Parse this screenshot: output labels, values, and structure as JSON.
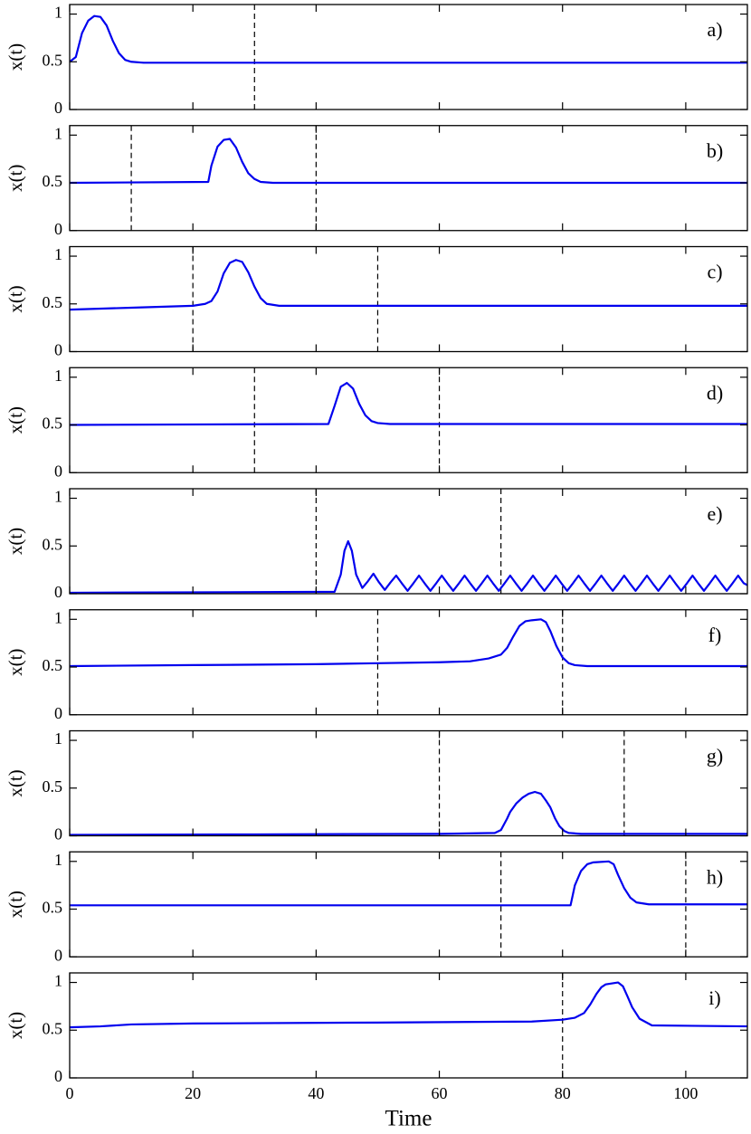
{
  "chart_data": [
    {
      "type": "line",
      "label": "a)",
      "ylabel": "x(t)",
      "color": "#0000ee",
      "xlim": [
        0,
        110
      ],
      "ylim": [
        0,
        1.1
      ],
      "xticks": [
        0,
        20,
        40,
        60,
        80,
        100
      ],
      "yticks": [
        0,
        0.5,
        1
      ],
      "vlines": [
        30
      ],
      "x": [
        0,
        1,
        2,
        3,
        4,
        5,
        6,
        7,
        8,
        9,
        10,
        12,
        15,
        110
      ],
      "values": [
        0.5,
        0.55,
        0.8,
        0.93,
        0.98,
        0.97,
        0.88,
        0.72,
        0.59,
        0.52,
        0.5,
        0.49,
        0.49,
        0.49
      ]
    },
    {
      "type": "line",
      "label": "b)",
      "ylabel": "x(t)",
      "color": "#0000ee",
      "xlim": [
        0,
        110
      ],
      "ylim": [
        0,
        1.1
      ],
      "xticks": [
        0,
        20,
        40,
        60,
        80,
        100
      ],
      "yticks": [
        0,
        0.5,
        1
      ],
      "vlines": [
        10,
        40
      ],
      "x": [
        0,
        22.5,
        23,
        24,
        25,
        26,
        27,
        28,
        29,
        30,
        31,
        33,
        110
      ],
      "values": [
        0.5,
        0.51,
        0.68,
        0.88,
        0.95,
        0.96,
        0.87,
        0.72,
        0.6,
        0.54,
        0.51,
        0.5,
        0.5
      ]
    },
    {
      "type": "line",
      "label": "c)",
      "ylabel": "x(t)",
      "color": "#0000ee",
      "xlim": [
        0,
        110
      ],
      "ylim": [
        0,
        1.1
      ],
      "xticks": [
        0,
        20,
        40,
        60,
        80,
        100
      ],
      "yticks": [
        0,
        0.5,
        1
      ],
      "vlines": [
        20,
        50
      ],
      "x": [
        0,
        10,
        20,
        22,
        23,
        24,
        25,
        26,
        27,
        28,
        29,
        30,
        31,
        32,
        34,
        110
      ],
      "values": [
        0.44,
        0.46,
        0.48,
        0.5,
        0.53,
        0.63,
        0.82,
        0.93,
        0.96,
        0.94,
        0.83,
        0.68,
        0.56,
        0.5,
        0.48,
        0.48
      ]
    },
    {
      "type": "line",
      "label": "d)",
      "ylabel": "x(t)",
      "color": "#0000ee",
      "xlim": [
        0,
        110
      ],
      "ylim": [
        0,
        1.1
      ],
      "xticks": [
        0,
        20,
        40,
        60,
        80,
        100
      ],
      "yticks": [
        0,
        0.5,
        1
      ],
      "vlines": [
        30,
        60
      ],
      "x": [
        0,
        42,
        43,
        44,
        45,
        46,
        47,
        48,
        49,
        50,
        52,
        110
      ],
      "values": [
        0.5,
        0.51,
        0.7,
        0.9,
        0.94,
        0.88,
        0.72,
        0.6,
        0.54,
        0.52,
        0.51,
        0.51
      ]
    },
    {
      "type": "line",
      "label": "e)",
      "ylabel": "x(t)",
      "color": "#0000ee",
      "xlim": [
        0,
        110
      ],
      "ylim": [
        0,
        1.1
      ],
      "xticks": [
        0,
        20,
        40,
        60,
        80,
        100
      ],
      "yticks": [
        0,
        0.5,
        1
      ],
      "vlines": [
        40,
        70
      ],
      "x": [
        0,
        43,
        44,
        44.6,
        45.2,
        45.8,
        46.5,
        47.5,
        48.4,
        49.3,
        50.2,
        51.15,
        52.1,
        53.0,
        53.9,
        54.85,
        55.8,
        56.7,
        57.6,
        58.55,
        59.5,
        60.4,
        61.3,
        62.25,
        63.2,
        64.1,
        65.0,
        65.95,
        66.9,
        67.8,
        68.7,
        69.65,
        70.6,
        71.5,
        72.4,
        73.35,
        74.3,
        75.2,
        76.1,
        77.05,
        78.0,
        78.9,
        79.8,
        80.75,
        81.7,
        82.6,
        83.5,
        84.45,
        85.4,
        86.3,
        87.2,
        88.15,
        89.1,
        90.0,
        90.9,
        91.85,
        92.8,
        93.7,
        94.6,
        95.55,
        96.5,
        97.4,
        98.3,
        99.25,
        100.2,
        101.1,
        102.0,
        102.95,
        103.9,
        104.8,
        105.7,
        106.65,
        107.6,
        108.5,
        109.4,
        110
      ],
      "values": [
        0.01,
        0.02,
        0.2,
        0.45,
        0.55,
        0.45,
        0.2,
        0.06,
        0.13,
        0.21,
        0.12,
        0.04,
        0.12,
        0.19,
        0.11,
        0.03,
        0.11,
        0.19,
        0.11,
        0.03,
        0.11,
        0.19,
        0.11,
        0.03,
        0.11,
        0.19,
        0.11,
        0.03,
        0.11,
        0.19,
        0.11,
        0.03,
        0.11,
        0.19,
        0.11,
        0.03,
        0.11,
        0.19,
        0.11,
        0.03,
        0.11,
        0.19,
        0.11,
        0.03,
        0.11,
        0.19,
        0.11,
        0.03,
        0.11,
        0.19,
        0.11,
        0.03,
        0.11,
        0.19,
        0.11,
        0.03,
        0.11,
        0.19,
        0.11,
        0.03,
        0.11,
        0.19,
        0.11,
        0.03,
        0.11,
        0.19,
        0.11,
        0.03,
        0.11,
        0.19,
        0.11,
        0.03,
        0.11,
        0.19,
        0.11,
        0.09
      ]
    },
    {
      "type": "line",
      "label": "f)",
      "ylabel": "x(t)",
      "color": "#0000ee",
      "xlim": [
        0,
        110
      ],
      "ylim": [
        0,
        1.1
      ],
      "xticks": [
        0,
        20,
        40,
        60,
        80,
        100
      ],
      "yticks": [
        0,
        0.5,
        1
      ],
      "vlines": [
        50,
        80
      ],
      "x": [
        0,
        20,
        40,
        50,
        60,
        65,
        68,
        70,
        71,
        72,
        73,
        74,
        75,
        76.5,
        77.3,
        78,
        79,
        80,
        81,
        82,
        84,
        110
      ],
      "values": [
        0.51,
        0.52,
        0.53,
        0.54,
        0.55,
        0.56,
        0.59,
        0.63,
        0.7,
        0.82,
        0.93,
        0.98,
        0.99,
        1.0,
        0.97,
        0.88,
        0.72,
        0.6,
        0.54,
        0.52,
        0.51,
        0.51
      ]
    },
    {
      "type": "line",
      "label": "g)",
      "ylabel": "x(t)",
      "color": "#0000ee",
      "xlim": [
        0,
        110
      ],
      "ylim": [
        0,
        1.1
      ],
      "xticks": [
        0,
        20,
        40,
        60,
        80,
        100
      ],
      "yticks": [
        0,
        0.5,
        1
      ],
      "vlines": [
        60,
        90
      ],
      "x": [
        0,
        30,
        60,
        69,
        70,
        71,
        71.5,
        72.5,
        73.5,
        74.5,
        75.5,
        76.5,
        77.3,
        78,
        78.8,
        79.5,
        80.3,
        81,
        83,
        110
      ],
      "values": [
        0.01,
        0.015,
        0.02,
        0.03,
        0.06,
        0.18,
        0.25,
        0.34,
        0.4,
        0.44,
        0.46,
        0.44,
        0.37,
        0.3,
        0.18,
        0.1,
        0.05,
        0.03,
        0.02,
        0.02
      ]
    },
    {
      "type": "line",
      "label": "h)",
      "ylabel": "x(t)",
      "color": "#0000ee",
      "xlim": [
        0,
        110
      ],
      "ylim": [
        0,
        1.1
      ],
      "xticks": [
        0,
        20,
        40,
        60,
        80,
        100
      ],
      "yticks": [
        0,
        0.5,
        1
      ],
      "vlines": [
        70,
        100
      ],
      "x": [
        0,
        81.3,
        82,
        83,
        84,
        85,
        87.5,
        88.3,
        89,
        90,
        91,
        92,
        94,
        110
      ],
      "values": [
        0.54,
        0.54,
        0.75,
        0.9,
        0.97,
        0.99,
        1.0,
        0.97,
        0.86,
        0.72,
        0.62,
        0.57,
        0.55,
        0.55
      ]
    },
    {
      "type": "line",
      "label": "i)",
      "ylabel": "x(t)",
      "xlabel": "Time",
      "show_xtick_labels": true,
      "color": "#0000ee",
      "xlim": [
        0,
        110
      ],
      "ylim": [
        0,
        1.1
      ],
      "xticks": [
        0,
        20,
        40,
        60,
        80,
        100
      ],
      "yticks": [
        0,
        0.5,
        1
      ],
      "vlines": [
        80
      ],
      "x": [
        0,
        5,
        10,
        20,
        50,
        75,
        80,
        82,
        83.5,
        84.5,
        85.5,
        86.3,
        87,
        89,
        89.8,
        90.5,
        91.3,
        92.5,
        94.5,
        110
      ],
      "values": [
        0.53,
        0.54,
        0.56,
        0.57,
        0.58,
        0.59,
        0.61,
        0.63,
        0.68,
        0.77,
        0.88,
        0.95,
        0.98,
        1.0,
        0.96,
        0.86,
        0.74,
        0.62,
        0.55,
        0.54
      ]
    }
  ]
}
